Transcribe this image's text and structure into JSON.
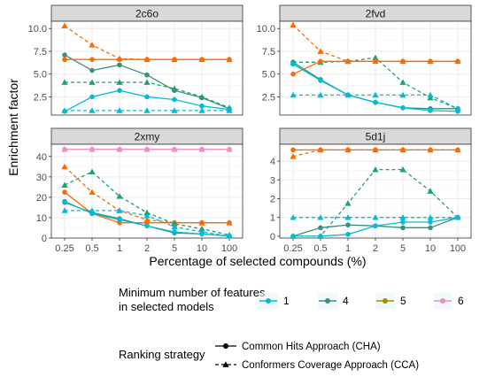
{
  "figure": {
    "ylabel": "Enrichment factor",
    "xlabel": "Percentage of selected compounds (%)",
    "legend_color_title_line1": "Minimum number of features",
    "legend_color_title_line2": "in selected models",
    "legend_strategy_title": "Ranking strategy",
    "legend_placement": "bottom"
  },
  "chart_data": [
    {
      "type": "line",
      "title": "2c6o",
      "categories": [
        "0.25",
        "0.5",
        "1",
        "2",
        "5",
        "10",
        "100"
      ],
      "ylim": [
        0.5,
        10.8
      ],
      "yticks": [
        2.5,
        5.0,
        7.5,
        10.0
      ],
      "ytick_labels": [
        "2.5",
        "5.0",
        "7.5",
        "10.0"
      ],
      "grid": true,
      "series": [
        {
          "name": "CHA",
          "group": "4",
          "strategy": "CHA",
          "values": [
            7.1,
            5.4,
            6.0,
            4.9,
            3.2,
            2.4,
            1.2
          ]
        },
        {
          "name": "CCA",
          "group": "4",
          "strategy": "CCA",
          "values": [
            4.1,
            4.1,
            4.1,
            4.1,
            3.4,
            2.5,
            1.3
          ]
        },
        {
          "name": "CHA",
          "group": "5",
          "strategy": "CHA",
          "values": [
            6.6,
            6.6,
            6.6,
            6.6,
            6.6,
            6.6,
            6.6
          ]
        },
        {
          "name": "CCA",
          "group": "5",
          "strategy": "CCA",
          "values": [
            10.3,
            8.2,
            6.7,
            6.6,
            6.6,
            6.6,
            6.6
          ]
        },
        {
          "name": "CHA",
          "group": "1",
          "strategy": "CHA",
          "values": [
            0.9,
            2.5,
            3.2,
            2.5,
            2.2,
            1.5,
            1.1
          ]
        },
        {
          "name": "CCA",
          "group": "1",
          "strategy": "CCA",
          "values": [
            1.0,
            1.0,
            1.0,
            1.0,
            1.0,
            1.0,
            1.0
          ]
        }
      ]
    },
    {
      "type": "line",
      "title": "2fvd",
      "categories": [
        "0.25",
        "0.5",
        "1",
        "2",
        "5",
        "10",
        "100"
      ],
      "ylim": [
        0.5,
        10.8
      ],
      "yticks": [
        2.5,
        5.0,
        7.5,
        10.0
      ],
      "ytick_labels": [
        "2.5",
        "5.0",
        "7.5",
        "10.0"
      ],
      "grid": true,
      "series": [
        {
          "name": "CHA",
          "group": "4",
          "strategy": "CHA",
          "values": [
            6.3,
            4.4,
            2.7,
            1.9,
            1.3,
            1.2,
            1.2
          ]
        },
        {
          "name": "CCA",
          "group": "4",
          "strategy": "CCA",
          "values": [
            6.3,
            6.3,
            6.4,
            6.8,
            4.1,
            2.4,
            1.2
          ]
        },
        {
          "name": "CHA",
          "group": "5",
          "strategy": "CHA",
          "values": [
            5.0,
            6.4,
            6.4,
            6.4,
            6.4,
            6.4,
            6.4
          ]
        },
        {
          "name": "CCA",
          "group": "5",
          "strategy": "CCA",
          "values": [
            10.4,
            7.5,
            6.4,
            6.4,
            6.4,
            6.4,
            6.4
          ]
        },
        {
          "name": "CHA",
          "group": "1",
          "strategy": "CHA",
          "values": [
            6.1,
            4.3,
            2.7,
            1.9,
            1.3,
            1.0,
            0.9
          ]
        },
        {
          "name": "CCA",
          "group": "1",
          "strategy": "CCA",
          "values": [
            2.7,
            2.7,
            2.7,
            2.7,
            2.7,
            2.7,
            1.2
          ]
        }
      ]
    },
    {
      "type": "line",
      "title": "2xmy",
      "categories": [
        "0.25",
        "0.5",
        "1",
        "2",
        "5",
        "10",
        "100"
      ],
      "ylim": [
        0,
        46
      ],
      "yticks": [
        0,
        10,
        20,
        30,
        40
      ],
      "ytick_labels": [
        "0",
        "10",
        "20",
        "30",
        "40"
      ],
      "grid": true,
      "series": [
        {
          "name": "CHA",
          "group": "6",
          "strategy": "CHA",
          "values": [
            43.5,
            43.5,
            43.5,
            43.5,
            43.5,
            43.5,
            43.5
          ]
        },
        {
          "name": "CCA",
          "group": "6",
          "strategy": "CCA",
          "values": [
            43.5,
            43.5,
            43.5,
            43.5,
            43.5,
            43.5,
            43.5
          ]
        },
        {
          "name": "CHA",
          "group": "5",
          "strategy": "CHA",
          "values": [
            22.5,
            12.0,
            7.5,
            7.5,
            7.5,
            7.5,
            7.5
          ]
        },
        {
          "name": "CCA",
          "group": "5",
          "strategy": "CCA",
          "values": [
            35.0,
            22.5,
            13.5,
            9.0,
            7.5,
            7.5,
            7.5
          ]
        },
        {
          "name": "CHA",
          "group": "4",
          "strategy": "CHA",
          "values": [
            17.5,
            12.5,
            9.5,
            6.0,
            2.5,
            2.0,
            1.0
          ]
        },
        {
          "name": "CCA",
          "group": "4",
          "strategy": "CCA",
          "values": [
            26.0,
            32.5,
            20.5,
            12.5,
            7.0,
            4.5,
            1.5
          ]
        },
        {
          "name": "CHA",
          "group": "1",
          "strategy": "CHA",
          "values": [
            18.0,
            12.0,
            9.0,
            6.0,
            3.0,
            2.0,
            1.0
          ]
        },
        {
          "name": "CCA",
          "group": "1",
          "strategy": "CCA",
          "values": [
            13.5,
            13.5,
            13.5,
            11.0,
            5.5,
            3.0,
            1.0
          ]
        }
      ]
    },
    {
      "type": "line",
      "title": "5d1j",
      "categories": [
        "0.25",
        "0.5",
        "1",
        "2",
        "5",
        "10",
        "100"
      ],
      "ylim": [
        -0.1,
        4.9
      ],
      "yticks": [
        0,
        1,
        2,
        3,
        4
      ],
      "ytick_labels": [
        "0",
        "1",
        "2",
        "3",
        "4"
      ],
      "grid": true,
      "series": [
        {
          "name": "CHA",
          "group": "5",
          "strategy": "CHA",
          "values": [
            4.6,
            4.6,
            4.6,
            4.6,
            4.6,
            4.6,
            4.6
          ]
        },
        {
          "name": "CCA",
          "group": "5",
          "strategy": "CCA",
          "values": [
            4.25,
            4.6,
            4.6,
            4.6,
            4.6,
            4.6,
            4.6
          ]
        },
        {
          "name": "CHA",
          "group": "4",
          "strategy": "CHA",
          "values": [
            0.0,
            0.45,
            0.6,
            0.55,
            0.45,
            0.45,
            1.0
          ]
        },
        {
          "name": "CCA",
          "group": "4",
          "strategy": "CCA",
          "values": [
            0.0,
            0.0,
            1.75,
            3.55,
            3.55,
            2.4,
            1.0
          ]
        },
        {
          "name": "CHA",
          "group": "1",
          "strategy": "CHA",
          "values": [
            0.0,
            0.0,
            0.1,
            0.55,
            0.75,
            0.75,
            1.0
          ]
        },
        {
          "name": "CCA",
          "group": "1",
          "strategy": "CCA",
          "values": [
            1.0,
            1.0,
            1.0,
            1.0,
            1.0,
            1.0,
            1.0
          ]
        }
      ]
    }
  ],
  "legend": {
    "colors": [
      {
        "label": "1",
        "color": "#00bcd8"
      },
      {
        "label": "4",
        "color": "#3a8f7f"
      },
      {
        "label": "5",
        "color": "#a88a00"
      },
      {
        "label": "6",
        "color": "#f08ec0"
      }
    ],
    "strategies": [
      {
        "label": "Common Hits Approach (CHA)",
        "line": "solid",
        "marker": "circle"
      },
      {
        "label": "Conformers Coverage Approach (CCA)",
        "line": "dashed",
        "marker": "triangle"
      }
    ]
  },
  "style": {
    "strip_fill": "#d9d9d9",
    "grid_color": "#ebebeb",
    "panel_border": "#333333",
    "series_colors": {
      "1": "#00bcd8",
      "4": "#239e74",
      "5": "#ff6a00",
      "6": "#f08ec0"
    },
    "series_colors_cha": {
      "1": "#00bcd8",
      "4": "#3a8f7f",
      "5": "#ff6a00",
      "6": "#f08ec0"
    }
  }
}
